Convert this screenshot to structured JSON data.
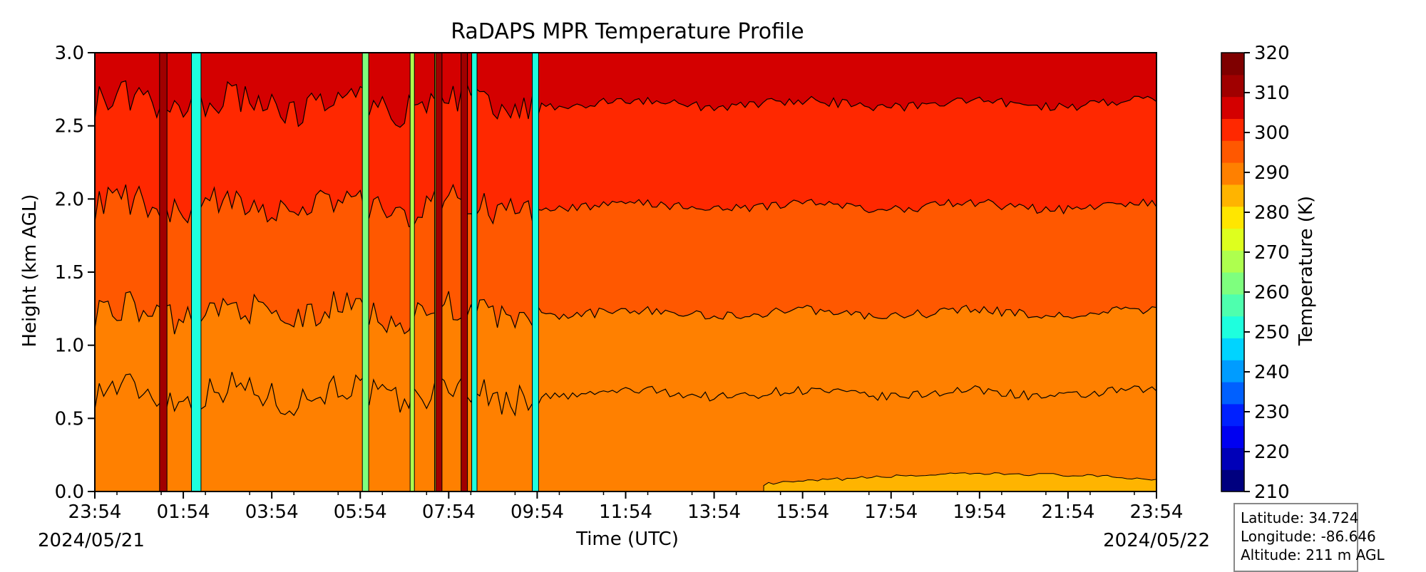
{
  "chart_data": {
    "type": "heatmap",
    "title": "RaDAPS MPR Temperature Profile",
    "xlabel": "Time (UTC)",
    "ylabel": "Height (km AGL)",
    "x_ticks": [
      "23:54",
      "01:54",
      "03:54",
      "05:54",
      "07:54",
      "09:54",
      "11:54",
      "13:54",
      "15:54",
      "17:54",
      "19:54",
      "21:54",
      "23:54"
    ],
    "start_date": "2024/05/21",
    "end_date": "2024/05/22",
    "y_ticks": [
      "0.0",
      "0.5",
      "1.0",
      "1.5",
      "2.0",
      "2.5",
      "3.0"
    ],
    "ylim": [
      0,
      3
    ],
    "colorbar": {
      "label": "Temperature (K)",
      "ticks": [
        "210",
        "220",
        "230",
        "240",
        "250",
        "260",
        "270",
        "280",
        "290",
        "300",
        "310",
        "320"
      ],
      "range": [
        210,
        320
      ],
      "colors": [
        "#00007f",
        "#0000b8",
        "#0000f1",
        "#0020ff",
        "#0060ff",
        "#009cff",
        "#00d4ff",
        "#1effde",
        "#4effae",
        "#7eff7e",
        "#aeff4e",
        "#deff1e",
        "#ffe600",
        "#ffb400",
        "#ff8000",
        "#ff5800",
        "#ff2800",
        "#d40000",
        "#a00000",
        "#7f0000"
      ]
    },
    "contours": [
      {
        "level_lower": 285,
        "level_upper": 290,
        "baseline_km": 0.67
      },
      {
        "level_lower": 290,
        "level_upper": 295,
        "baseline_km": 1.22
      },
      {
        "level_lower": 295,
        "level_upper": 300,
        "baseline_km": 1.95
      },
      {
        "level_lower": 300,
        "level_upper": 305,
        "baseline_km": 2.65
      }
    ],
    "grid": false
  },
  "station": {
    "latitude": "Latitude: 34.724",
    "longitude": "Longitude: -86.646",
    "altitude": "Altitude: 211 m AGL"
  }
}
